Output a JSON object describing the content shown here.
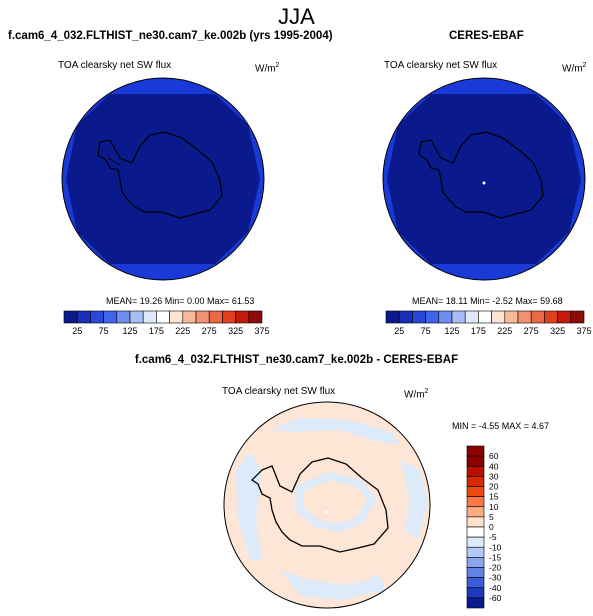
{
  "season": "JJA",
  "left_panel": {
    "title": "f.cam6_4_032.FLTHIST_ne30.cam7_ke.002b (yrs 1995-2004)",
    "subtitle": "TOA clearsky net SW flux",
    "units": "W/m",
    "units_exp": "2",
    "stats": "MEAN=  19.26  Min=   0.00  Max=  61.53",
    "colorbar_ticks": [
      "25",
      "75",
      "125",
      "175",
      "225",
      "275",
      "325",
      "375"
    ]
  },
  "right_panel": {
    "title": "CERES-EBAF",
    "subtitle": "TOA clearsky net SW flux",
    "units": "W/m",
    "units_exp": "2",
    "stats": "MEAN=  18.11  Min=  -2.52  Max=  59.68",
    "colorbar_ticks": [
      "25",
      "75",
      "125",
      "175",
      "225",
      "275",
      "325",
      "375"
    ]
  },
  "diff_panel": {
    "title": "f.cam6_4_032.FLTHIST_ne30.cam7_ke.002b - CERES-EBAF",
    "subtitle": "TOA clearsky net SW flux",
    "units": "W/m",
    "units_exp": "2",
    "stats": "MIN = -4.55 MAX =  4.67",
    "colorbar_labels": [
      "60",
      "40",
      "30",
      "20",
      "15",
      "10",
      "5",
      "0",
      "-5",
      "-10",
      "-15",
      "-20",
      "-30",
      "-40",
      "-60"
    ]
  },
  "colors": {
    "abs_scale": [
      "#0a1a8c",
      "#1a2fb8",
      "#2a48d8",
      "#3e66ea",
      "#6f8ff0",
      "#a8bcf5",
      "#dfe7fb",
      "#ffffff",
      "#fde4d3",
      "#f7b99a",
      "#f29270",
      "#eb6a45",
      "#e04020",
      "#c41a0c",
      "#8e0a06"
    ],
    "diff_scale": [
      "#8c0000",
      "#b81000",
      "#d82a00",
      "#ee4a10",
      "#f7794a",
      "#fbab82",
      "#fde1cc",
      "#ffffff",
      "#dbeaf9",
      "#b2c9f5",
      "#8aa7ee",
      "#6282e6",
      "#3c5edd",
      "#2038be",
      "#0a1a8c"
    ],
    "map_deep": "#0a1a8c",
    "map_ring": "#1a3ad8",
    "diff_land": "#fde6d6",
    "diff_sea": "#dceaf9"
  }
}
